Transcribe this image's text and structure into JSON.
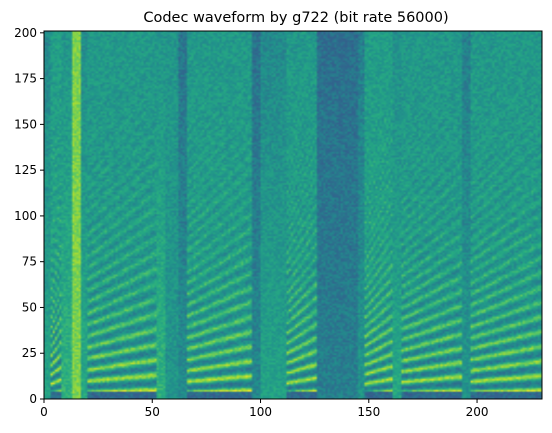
{
  "chart_data": {
    "type": "heatmap",
    "title": "Codec waveform by g722 (bit rate 56000)",
    "xlabel": "",
    "ylabel": "",
    "xlim": [
      0,
      230
    ],
    "ylim": [
      0,
      201
    ],
    "x_ticks": [
      0,
      50,
      100,
      150,
      200
    ],
    "y_ticks": [
      0,
      25,
      50,
      75,
      100,
      125,
      150,
      175,
      200
    ],
    "colormap": "viridis",
    "grid": false,
    "legend": "none",
    "colors": {
      "low": "#440154",
      "mid_low": "#31688e",
      "mid": "#21918c",
      "mid_high": "#35b779",
      "high": "#fde725"
    },
    "segments": [
      {
        "x0": 0,
        "x1": 3,
        "level": 0.42
      },
      {
        "x0": 3,
        "x1": 8,
        "level": 0.82,
        "voiced": true,
        "f0": 5.2
      },
      {
        "x0": 8,
        "x1": 13,
        "level": 0.5
      },
      {
        "x0": 13,
        "x1": 17,
        "level": 0.85,
        "fricative": true
      },
      {
        "x0": 17,
        "x1": 20,
        "level": 0.45
      },
      {
        "x0": 20,
        "x1": 52,
        "level": 0.7,
        "voiced": true,
        "f0": 6.2
      },
      {
        "x0": 52,
        "x1": 56,
        "level": 0.5
      },
      {
        "x0": 56,
        "x1": 62,
        "level": 0.55,
        "fricative": true
      },
      {
        "x0": 62,
        "x1": 66,
        "level": 0.3
      },
      {
        "x0": 66,
        "x1": 96,
        "level": 0.72,
        "voiced": true,
        "f0": 6.0
      },
      {
        "x0": 96,
        "x1": 100,
        "level": 0.28
      },
      {
        "x0": 100,
        "x1": 112,
        "level": 0.42
      },
      {
        "x0": 112,
        "x1": 126,
        "level": 0.72,
        "voiced": true,
        "f0": 5.5
      },
      {
        "x0": 126,
        "x1": 145,
        "level": 0.25
      },
      {
        "x0": 145,
        "x1": 148,
        "level": 0.35
      },
      {
        "x0": 148,
        "x1": 161,
        "level": 0.8,
        "voiced": true,
        "f0": 5.2
      },
      {
        "x0": 161,
        "x1": 165,
        "level": 0.45
      },
      {
        "x0": 165,
        "x1": 193,
        "level": 0.68,
        "voiced": true,
        "f0": 5.8
      },
      {
        "x0": 193,
        "x1": 197,
        "level": 0.35
      },
      {
        "x0": 197,
        "x1": 230,
        "level": 0.7,
        "voiced": true,
        "f0": 6.0
      }
    ]
  }
}
